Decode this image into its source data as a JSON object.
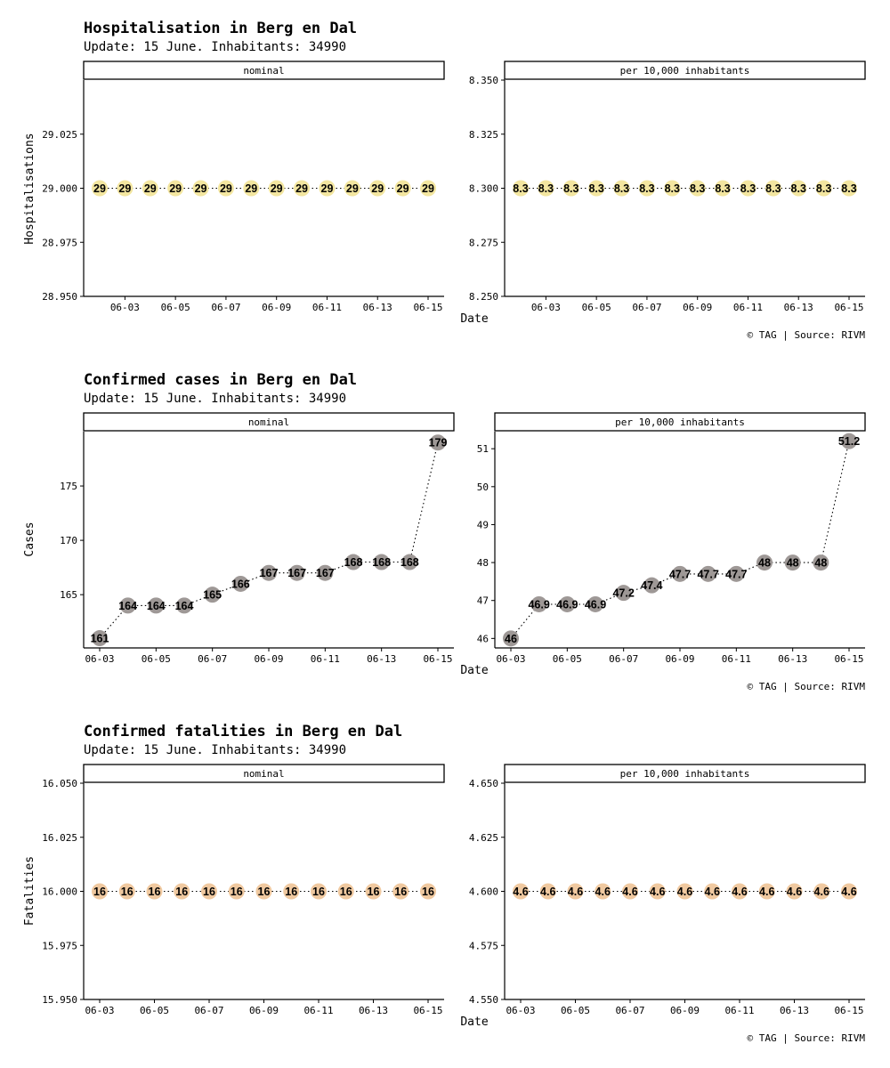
{
  "caption": "© TAG | Source: RIVM",
  "x_axis_label": "Date",
  "chart_data": [
    {
      "type": "line",
      "title": "Hospitalisation in Berg en Dal",
      "subtitle": "Update: 15 June. Inhabitants: 34990",
      "ylabel": "Hospitalisations",
      "xlabel": "Date",
      "point_color": "#f3e6a0",
      "x": [
        "06-02",
        "06-03",
        "06-04",
        "06-05",
        "06-06",
        "06-07",
        "06-08",
        "06-09",
        "06-10",
        "06-11",
        "06-12",
        "06-13",
        "06-14",
        "06-15"
      ],
      "x_ticks": [
        "06-03",
        "06-05",
        "06-07",
        "06-09",
        "06-11",
        "06-13",
        "06-15"
      ],
      "panels": [
        {
          "strip": "nominal",
          "ylim": [
            28.95,
            29.05
          ],
          "y_ticks": [
            "28.950",
            "28.975",
            "29.000",
            "29.025"
          ],
          "y_tick_values": [
            28.95,
            28.975,
            29.0,
            29.025
          ],
          "values": [
            29,
            29,
            29,
            29,
            29,
            29,
            29,
            29,
            29,
            29,
            29,
            29,
            29,
            29
          ],
          "labels": [
            "29",
            "29",
            "29",
            "29",
            "29",
            "29",
            "29",
            "29",
            "29",
            "29",
            "29",
            "29",
            "29",
            "29"
          ]
        },
        {
          "strip": "per 10,000 inhabitants",
          "ylim": [
            8.25,
            8.35
          ],
          "y_ticks": [
            "8.250",
            "8.275",
            "8.300",
            "8.325",
            "8.350"
          ],
          "y_tick_values": [
            8.25,
            8.275,
            8.3,
            8.325,
            8.35
          ],
          "values": [
            8.3,
            8.3,
            8.3,
            8.3,
            8.3,
            8.3,
            8.3,
            8.3,
            8.3,
            8.3,
            8.3,
            8.3,
            8.3,
            8.3
          ],
          "labels": [
            "8.3",
            "8.3",
            "8.3",
            "8.3",
            "8.3",
            "8.3",
            "8.3",
            "8.3",
            "8.3",
            "8.3",
            "8.3",
            "8.3",
            "8.3",
            "8.3"
          ]
        }
      ]
    },
    {
      "type": "line",
      "title": "Confirmed cases in Berg en Dal",
      "subtitle": "Update: 15 June. Inhabitants: 34990",
      "ylabel": "Cases",
      "xlabel": "Date",
      "point_color": "#9e9896",
      "x": [
        "06-03",
        "06-04",
        "06-05",
        "06-06",
        "06-07",
        "06-08",
        "06-09",
        "06-10",
        "06-11",
        "06-12",
        "06-13",
        "06-14",
        "06-15"
      ],
      "x_ticks": [
        "06-03",
        "06-05",
        "06-07",
        "06-09",
        "06-11",
        "06-13",
        "06-15"
      ],
      "panels": [
        {
          "strip": "nominal",
          "ylim": [
            160.1,
            180.0
          ],
          "y_ticks": [
            "165",
            "170",
            "175"
          ],
          "y_tick_values": [
            165,
            170,
            175
          ],
          "values": [
            161,
            164,
            164,
            164,
            165,
            166,
            167,
            167,
            167,
            168,
            168,
            168,
            179
          ],
          "labels": [
            "161",
            "164",
            "164",
            "164",
            "165",
            "166",
            "167",
            "167",
            "167",
            "168",
            "168",
            "168",
            "179"
          ]
        },
        {
          "strip": "per 10,000 inhabitants",
          "ylim": [
            45.75,
            51.45
          ],
          "y_ticks": [
            "46",
            "47",
            "48",
            "49",
            "50",
            "51"
          ],
          "y_tick_values": [
            46,
            47,
            48,
            49,
            50,
            51
          ],
          "values": [
            46,
            46.9,
            46.9,
            46.9,
            47.2,
            47.4,
            47.7,
            47.7,
            47.7,
            48,
            48,
            48,
            51.2
          ],
          "labels": [
            "46",
            "46.9",
            "46.9",
            "46.9",
            "47.2",
            "47.4",
            "47.7",
            "47.7",
            "47.7",
            "48",
            "48",
            "48",
            "51.2"
          ]
        }
      ]
    },
    {
      "type": "line",
      "title": "Confirmed fatalities in Berg en Dal",
      "subtitle": "Update: 15 June. Inhabitants: 34990",
      "ylabel": "Fatalities",
      "xlabel": "Date",
      "point_color": "#f0c9a0",
      "x": [
        "06-03",
        "06-04",
        "06-05",
        "06-06",
        "06-07",
        "06-08",
        "06-09",
        "06-10",
        "06-11",
        "06-12",
        "06-13",
        "06-14",
        "06-15"
      ],
      "x_ticks": [
        "06-03",
        "06-05",
        "06-07",
        "06-09",
        "06-11",
        "06-13",
        "06-15"
      ],
      "panels": [
        {
          "strip": "nominal",
          "ylim": [
            15.95,
            16.05
          ],
          "y_ticks": [
            "15.950",
            "15.975",
            "16.000",
            "16.025",
            "16.050"
          ],
          "y_tick_values": [
            15.95,
            15.975,
            16.0,
            16.025,
            16.05
          ],
          "values": [
            16,
            16,
            16,
            16,
            16,
            16,
            16,
            16,
            16,
            16,
            16,
            16,
            16
          ],
          "labels": [
            "16",
            "16",
            "16",
            "16",
            "16",
            "16",
            "16",
            "16",
            "16",
            "16",
            "16",
            "16",
            "16"
          ]
        },
        {
          "strip": "per 10,000 inhabitants",
          "ylim": [
            4.55,
            4.65
          ],
          "y_ticks": [
            "4.550",
            "4.575",
            "4.600",
            "4.625",
            "4.650"
          ],
          "y_tick_values": [
            4.55,
            4.575,
            4.6,
            4.625,
            4.65
          ],
          "values": [
            4.6,
            4.6,
            4.6,
            4.6,
            4.6,
            4.6,
            4.6,
            4.6,
            4.6,
            4.6,
            4.6,
            4.6,
            4.6
          ],
          "labels": [
            "4.6",
            "4.6",
            "4.6",
            "4.6",
            "4.6",
            "4.6",
            "4.6",
            "4.6",
            "4.6",
            "4.6",
            "4.6",
            "4.6",
            "4.6"
          ]
        }
      ]
    }
  ]
}
